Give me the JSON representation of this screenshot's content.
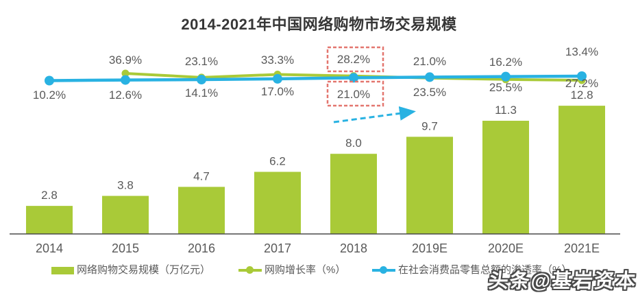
{
  "title": "2014-2021年中国网络购物市场交易规模",
  "watermark": "头条@基岩资本",
  "colors": {
    "bar_green": "#a9ca38",
    "line_green": "#a9ca38",
    "line_blue": "#29b2e2",
    "highlight_box": "#e3766f",
    "label_gray": "#595959",
    "title_dark": "#363636",
    "axis_line": "#4a4a4a",
    "background": "#ffffff"
  },
  "chart_data": {
    "type": "bar+line",
    "title": "2014-2021年中国网络购物市场交易规模",
    "categories": [
      "2014",
      "2015",
      "2016",
      "2017",
      "2018",
      "2019E",
      "2020E",
      "2021E"
    ],
    "bar_series": {
      "name": "网络购物交易规模（万亿元）",
      "unit": "万亿元",
      "values": [
        2.8,
        3.8,
        4.7,
        6.2,
        8.0,
        9.7,
        11.3,
        12.8
      ]
    },
    "line_series": [
      {
        "name": "网购增长率（%）",
        "values": [
          null,
          36.9,
          23.1,
          33.3,
          28.2,
          21.0,
          16.2,
          13.4
        ]
      },
      {
        "name": "在社会消费品零售总额的渗透率（%）",
        "values": [
          10.2,
          12.6,
          14.1,
          17.0,
          21.0,
          23.5,
          25.5,
          27.2
        ]
      }
    ],
    "value_labels": {
      "bars": [
        "2.8",
        "3.8",
        "4.7",
        "6.2",
        "8.0",
        "9.7",
        "11.3",
        "12.8"
      ],
      "growth": [
        null,
        "36.9%",
        "23.1%",
        "33.3%",
        "28.2%",
        "21.0%",
        "16.2%",
        "13.4%"
      ],
      "penetration": [
        "10.2%",
        "12.6%",
        "14.1%",
        "17.0%",
        "21.0%",
        "23.5%",
        "25.5%",
        "27.2%"
      ]
    },
    "annotations": {
      "highlighted_year": "2018",
      "highlighted_values": [
        "28.2%",
        "21.0%"
      ],
      "trend_arrow": "rising"
    },
    "grid": false,
    "y_axis_visible": false,
    "legend_position": "bottom"
  },
  "legend": [
    {
      "label": "网络购物交易规模（万亿元）",
      "type": "bar"
    },
    {
      "label": "网购增长率（%）",
      "type": "line"
    },
    {
      "label": "在社会消费品零售总额的渗透率（%）",
      "type": "line"
    }
  ]
}
